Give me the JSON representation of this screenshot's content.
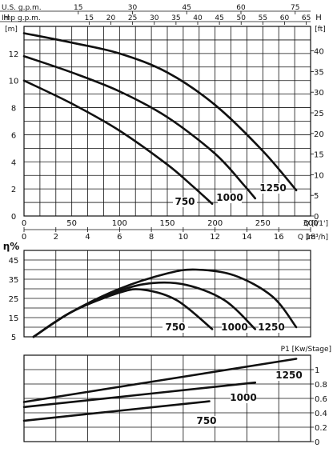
{
  "chart_data": [
    {
      "type": "line",
      "panel": "head",
      "ylabel": "H",
      "y_unit": "[m]",
      "y2label": "H",
      "y2_unit": "[ft]",
      "xlabel": "Q [l/1']",
      "x2label": "Q [m³/h]",
      "top_axis_1_label": "U.S. g.p.m.",
      "top_axis_2_label": "Imp g.p.m.",
      "xlim": [
        0,
        300
      ],
      "ylim": [
        0,
        14
      ],
      "x_ticks": [
        "0",
        "50",
        "100",
        "150",
        "200",
        "250",
        "300"
      ],
      "x2_ticks": [
        "0",
        "2",
        "4",
        "6",
        "8",
        "10",
        "12",
        "14",
        "16",
        "18"
      ],
      "y_ticks": [
        "0",
        "2",
        "4",
        "6",
        "8",
        "10",
        "12"
      ],
      "y2_ticks": [
        "0",
        "5",
        "10",
        "15",
        "20",
        "25",
        "30",
        "35",
        "40"
      ],
      "top_axis_1_ticks": [
        "15",
        "30",
        "45",
        "60",
        "75"
      ],
      "top_axis_2_ticks": [
        "15",
        "20",
        "25",
        "30",
        "35",
        "40",
        "45",
        "50",
        "55",
        "60",
        "65"
      ],
      "series": [
        {
          "name": "750",
          "x": [
            0,
            50,
            100,
            150,
            175,
            197
          ],
          "y": [
            10,
            8.3,
            6.3,
            3.8,
            2.3,
            0.9
          ]
        },
        {
          "name": "1000",
          "x": [
            0,
            50,
            100,
            150,
            200,
            230,
            242
          ],
          "y": [
            11.8,
            10.6,
            9.2,
            7.3,
            4.6,
            2.3,
            1.3
          ]
        },
        {
          "name": "1250",
          "x": [
            0,
            50,
            100,
            150,
            200,
            250,
            285
          ],
          "y": [
            13.5,
            12.8,
            12.0,
            10.6,
            8.2,
            4.8,
            1.9
          ]
        }
      ]
    },
    {
      "type": "line",
      "panel": "efficiency",
      "ylabel": "η%",
      "xlim": [
        0,
        300
      ],
      "ylim": [
        5,
        50
      ],
      "y_ticks": [
        "5",
        "15",
        "25",
        "35",
        "45"
      ],
      "series": [
        {
          "name": "750",
          "x": [
            10,
            50,
            100,
            125,
            160,
            197
          ],
          "y": [
            5,
            18,
            28,
            29.5,
            24,
            9
          ]
        },
        {
          "name": "1000",
          "x": [
            10,
            50,
            100,
            135,
            170,
            210,
            242
          ],
          "y": [
            5,
            18,
            29,
            33,
            32,
            24,
            9
          ]
        },
        {
          "name": "1250",
          "x": [
            10,
            50,
            100,
            150,
            180,
            220,
            260,
            285
          ],
          "y": [
            5,
            18,
            30,
            38,
            40,
            37,
            26,
            10
          ]
        }
      ]
    },
    {
      "type": "line",
      "panel": "power",
      "ylabel": "P1 [Kw/Stage]",
      "xlim": [
        0,
        300
      ],
      "ylim": [
        0,
        1.2
      ],
      "y_ticks": [
        "0",
        "0.2",
        "0.4",
        "0.6",
        "0.8",
        "1"
      ],
      "series": [
        {
          "name": "750",
          "x": [
            0,
            194
          ],
          "y": [
            0.29,
            0.56
          ]
        },
        {
          "name": "1000",
          "x": [
            0,
            242
          ],
          "y": [
            0.48,
            0.82
          ]
        },
        {
          "name": "1250",
          "x": [
            0,
            285
          ],
          "y": [
            0.55,
            1.15
          ]
        }
      ]
    }
  ]
}
